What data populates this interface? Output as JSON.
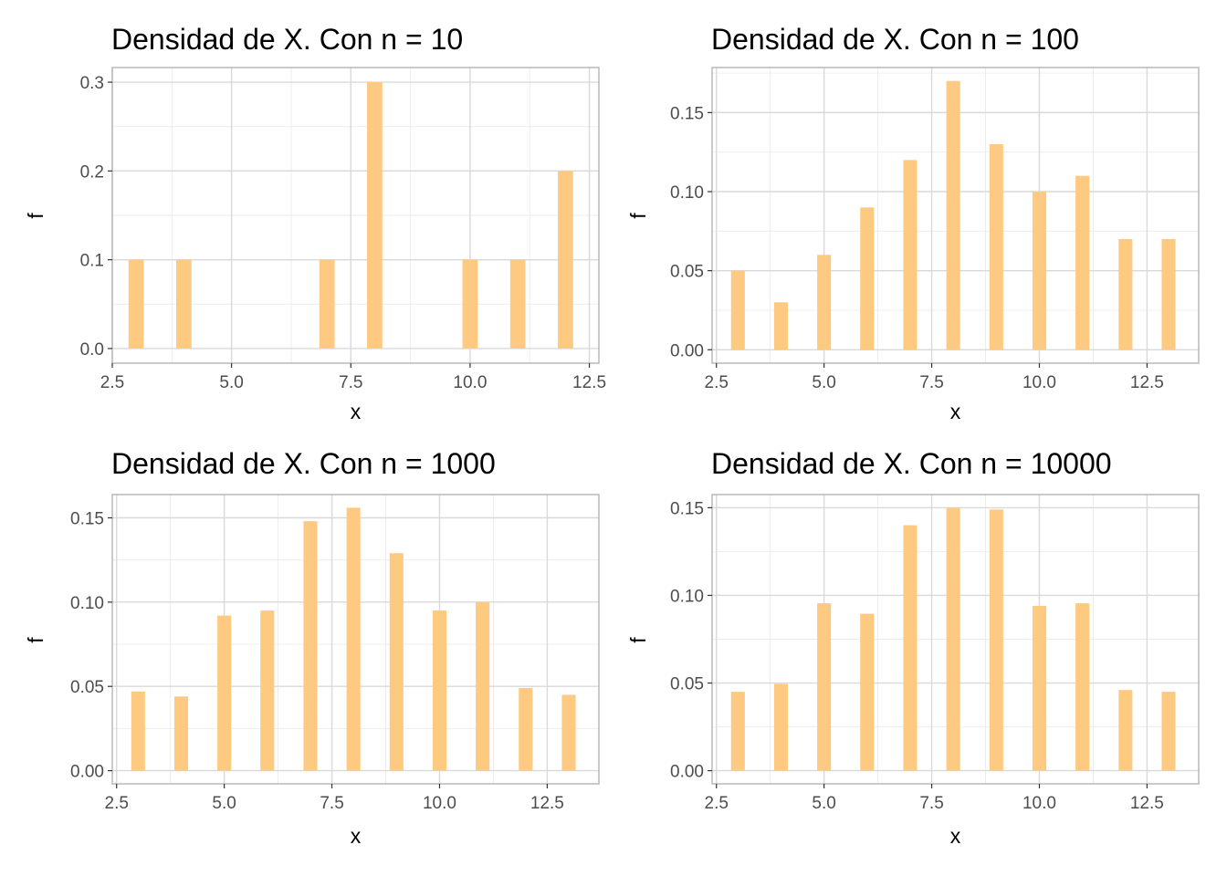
{
  "chart_data": [
    {
      "type": "bar",
      "title": "Densidad de X. Con n = 10",
      "xlabel": "x",
      "ylabel": "f",
      "xlim": [
        2.5,
        12.7
      ],
      "ylim": [
        -0.0165,
        0.3165
      ],
      "x_ticks": [
        "2.5",
        "5.0",
        "7.5",
        "10.0",
        "12.5"
      ],
      "y_ticks": [
        "0.0",
        "0.1",
        "0.2",
        "0.3"
      ],
      "x": [
        3,
        4,
        7,
        8,
        10,
        11,
        12
      ],
      "values": [
        0.1,
        0.1,
        0.1,
        0.3,
        0.1,
        0.1,
        0.2
      ],
      "bar_color": "#fec980",
      "grid": true
    },
    {
      "type": "bar",
      "title": "Densidad de X. Con n = 100",
      "xlabel": "x",
      "ylabel": "f",
      "xlim": [
        2.4,
        13.7
      ],
      "ylim": [
        -0.0085,
        0.1785
      ],
      "x_ticks": [
        "2.5",
        "5.0",
        "7.5",
        "10.0",
        "12.5"
      ],
      "y_ticks": [
        "0.00",
        "0.05",
        "0.10",
        "0.15"
      ],
      "x": [
        3,
        4,
        5,
        6,
        7,
        8,
        9,
        10,
        11,
        12,
        13
      ],
      "values": [
        0.05,
        0.03,
        0.06,
        0.09,
        0.12,
        0.17,
        0.13,
        0.1,
        0.11,
        0.07,
        0.07
      ],
      "bar_color": "#fec980",
      "grid": true
    },
    {
      "type": "bar",
      "title": "Densidad de X. Con n = 1000",
      "xlabel": "x",
      "ylabel": "f",
      "xlim": [
        2.4,
        13.7
      ],
      "ylim": [
        -0.0078,
        0.1638
      ],
      "x_ticks": [
        "2.5",
        "5.0",
        "7.5",
        "10.0",
        "12.5"
      ],
      "y_ticks": [
        "0.00",
        "0.05",
        "0.10",
        "0.15"
      ],
      "x": [
        3,
        4,
        5,
        6,
        7,
        8,
        9,
        10,
        11,
        12,
        13
      ],
      "values": [
        0.047,
        0.044,
        0.092,
        0.095,
        0.148,
        0.156,
        0.129,
        0.095,
        0.1,
        0.049,
        0.045
      ],
      "bar_color": "#fec980",
      "grid": true
    },
    {
      "type": "bar",
      "title": "Densidad de X. Con n = 10000",
      "xlabel": "x",
      "ylabel": "f",
      "xlim": [
        2.4,
        13.7
      ],
      "ylim": [
        -0.0075,
        0.1575
      ],
      "x_ticks": [
        "2.5",
        "5.0",
        "7.5",
        "10.0",
        "12.5"
      ],
      "y_ticks": [
        "0.00",
        "0.05",
        "0.10",
        "0.15"
      ],
      "x": [
        3,
        4,
        5,
        6,
        7,
        8,
        9,
        10,
        11,
        12,
        13
      ],
      "values": [
        0.045,
        0.0495,
        0.0955,
        0.0895,
        0.14,
        0.15,
        0.149,
        0.094,
        0.0955,
        0.046,
        0.045
      ],
      "bar_color": "#fec980",
      "grid": true
    }
  ]
}
